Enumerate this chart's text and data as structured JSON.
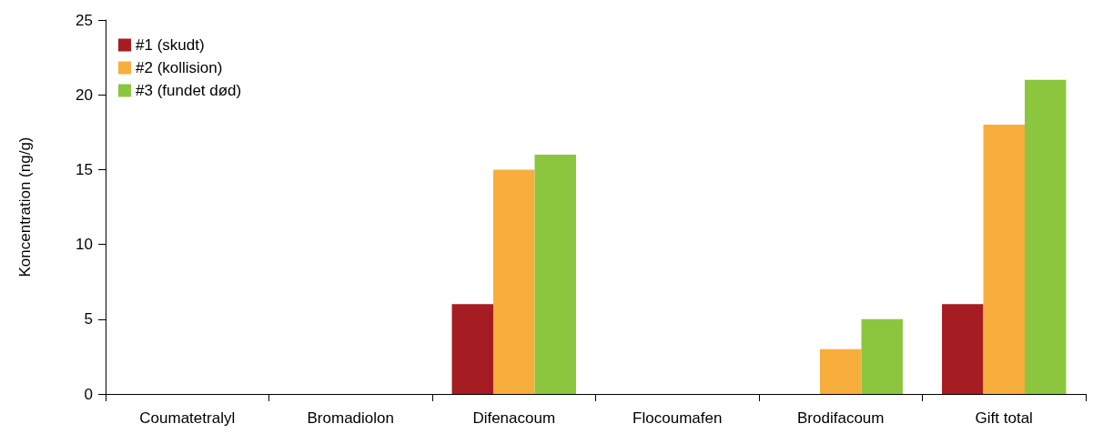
{
  "chart_data": {
    "type": "bar",
    "ylabel": "Koncentration (ng/g)",
    "categories": [
      "Coumatetralyl",
      "Bromadiolon",
      "Difenacoum",
      "Flocoumafen",
      "Brodifacoum",
      "Gift total"
    ],
    "series": [
      {
        "name": "#1 (skudt)",
        "color": "#a51c22",
        "values": [
          0,
          0,
          6,
          0,
          0,
          6
        ]
      },
      {
        "name": "#2 (kollision)",
        "color": "#f8ae3c",
        "values": [
          0,
          0,
          15,
          0,
          3,
          18
        ]
      },
      {
        "name": "#3 (fundet død)",
        "color": "#8cc63f",
        "values": [
          0,
          0,
          16,
          0,
          5,
          21
        ]
      }
    ],
    "ylim": [
      0,
      25
    ],
    "yticks": [
      0,
      5,
      10,
      15,
      20,
      25
    ],
    "grid": false,
    "legend": "top left"
  }
}
